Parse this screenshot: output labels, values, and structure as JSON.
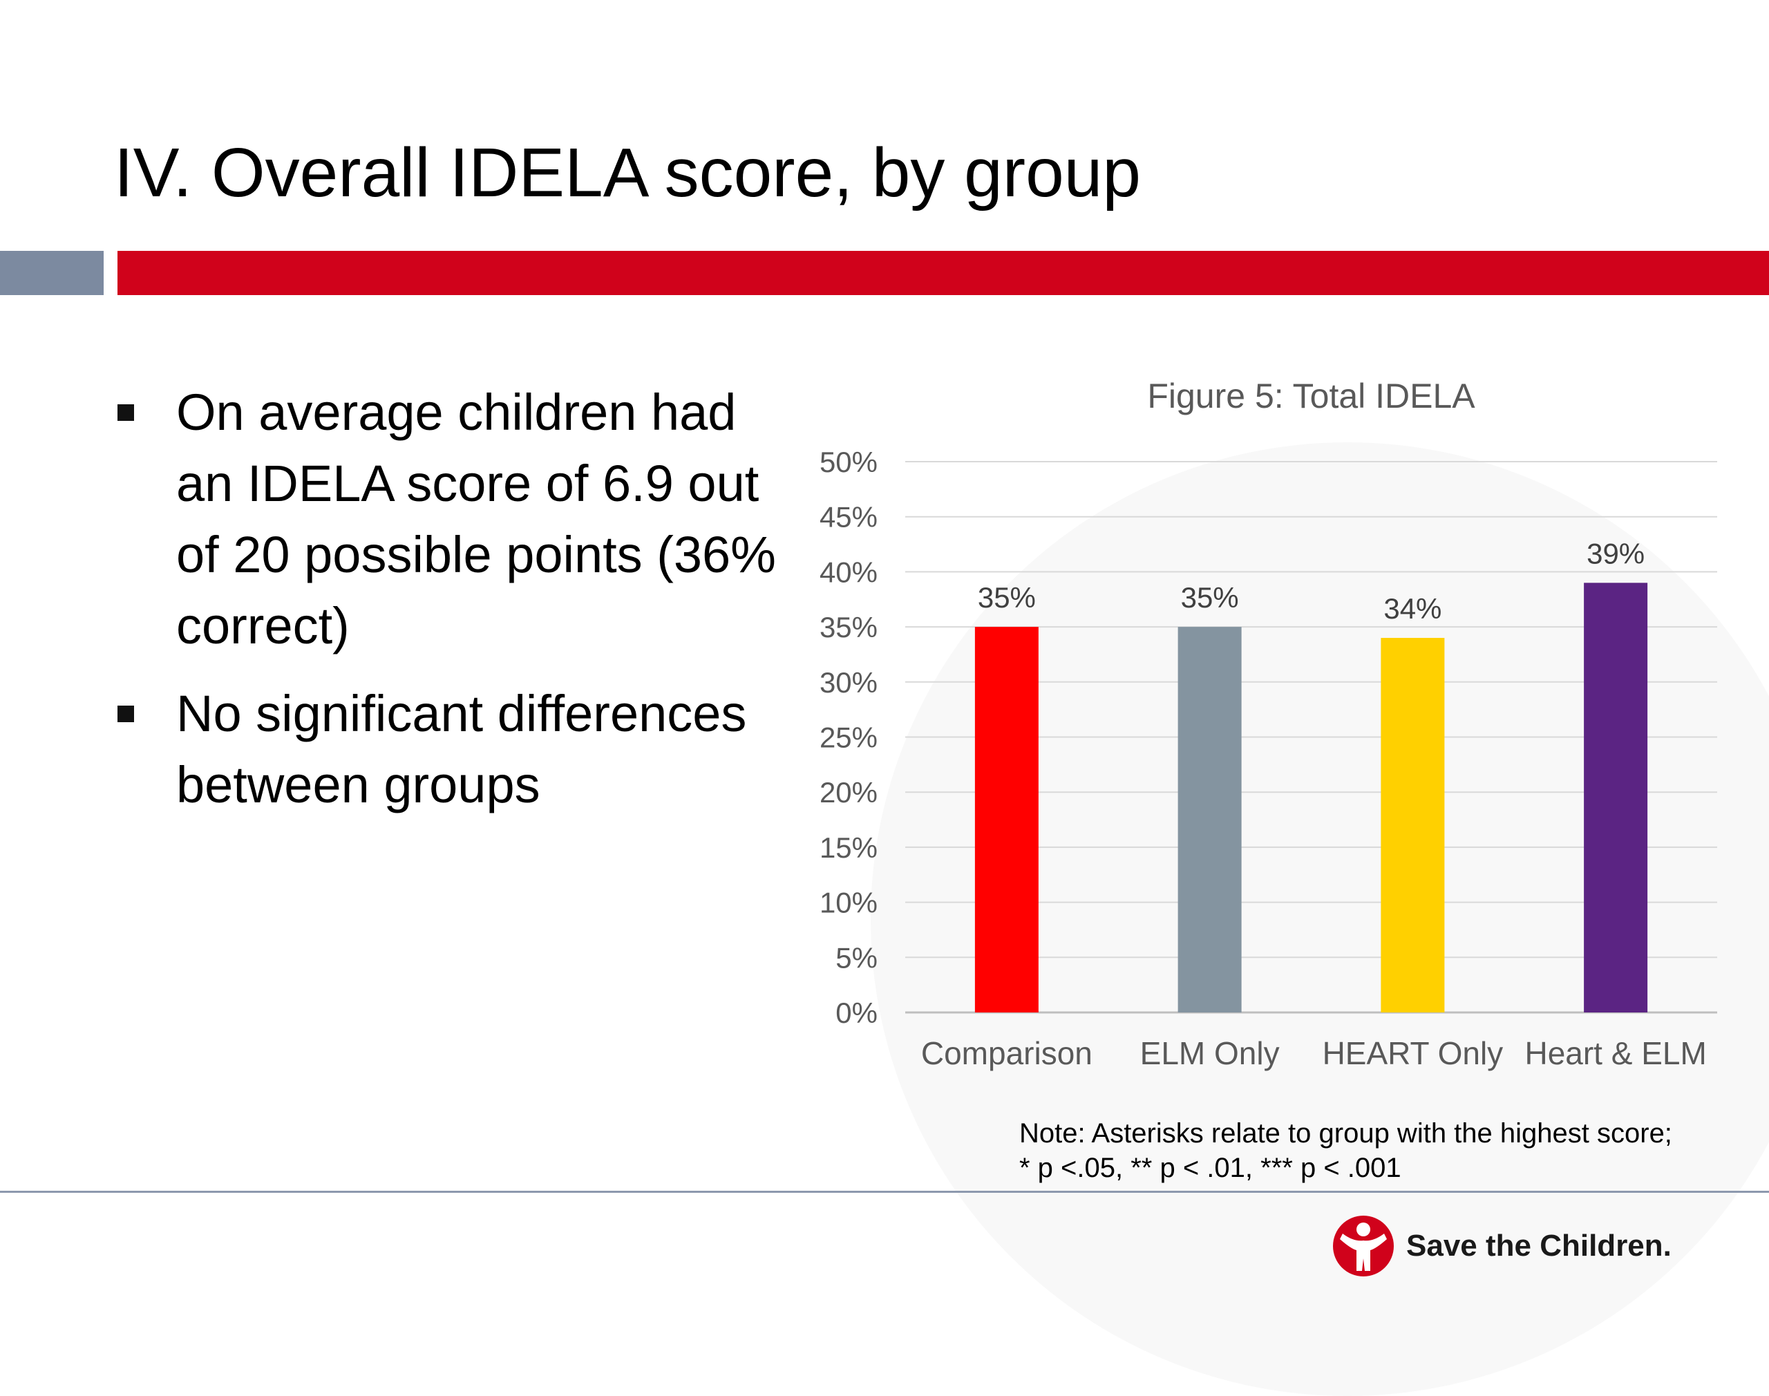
{
  "slide": {
    "title": "IV. Overall IDELA score, by group",
    "bullets": [
      "On average children had an IDELA score of 6.9 out of 20 possible points (36% correct)",
      "No significant differences between groups"
    ],
    "note_line1": "Note:  Asterisks relate to group with the highest score;",
    "note_line2": " * p <.05, ** p < .01, *** p < .001",
    "logo_text": "Save the Children."
  },
  "colors": {
    "title_bar": "#d0021b",
    "accent_gray": "#7c8aa0",
    "logo_red": "#d0021b"
  },
  "chart_data": {
    "type": "bar",
    "title": "Figure 5: Total IDELA",
    "categories": [
      "Comparison",
      "ELM Only",
      "HEART Only",
      "Heart & ELM"
    ],
    "values": [
      35,
      35,
      34,
      39
    ],
    "data_labels": [
      "35%",
      "35%",
      "34%",
      "39%"
    ],
    "bar_colors": [
      "#ff0000",
      "#8494a0",
      "#ffd000",
      "#5b2483"
    ],
    "ylim": [
      0,
      50
    ],
    "yticks": [
      0,
      5,
      10,
      15,
      20,
      25,
      30,
      35,
      40,
      45,
      50
    ],
    "ytick_labels": [
      "0%",
      "5%",
      "10%",
      "15%",
      "20%",
      "25%",
      "30%",
      "35%",
      "40%",
      "45%",
      "50%"
    ],
    "grid": true,
    "legend": "none"
  }
}
